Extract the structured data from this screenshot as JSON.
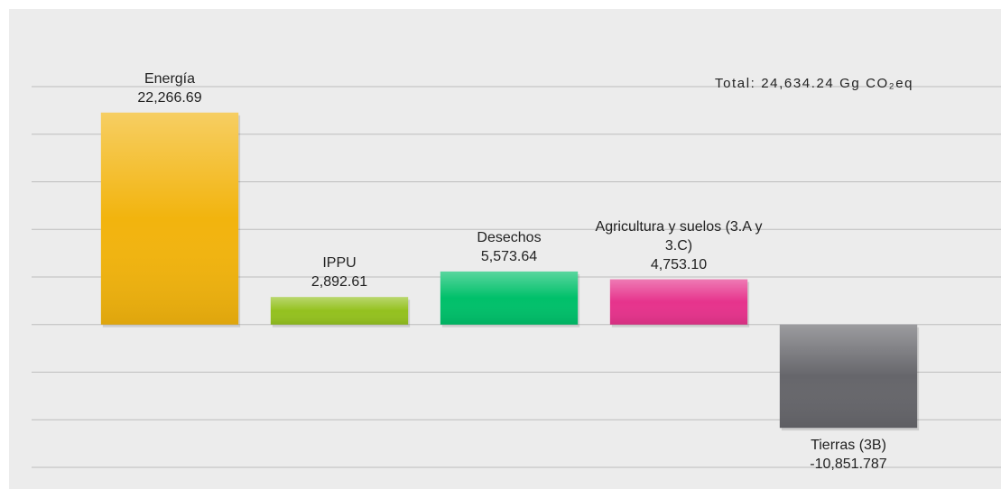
{
  "chart_data": {
    "type": "bar",
    "annotation": "Total: 24,634.24 Gg CO₂eq",
    "categories": [
      "Energía",
      "IPPU",
      "Desechos",
      "Agricultura y suelos (3.A y 3.C)",
      "Tierras (3B)"
    ],
    "values": [
      22266.69,
      2892.61,
      5573.64,
      4753.1,
      -10851.787
    ],
    "value_labels": [
      "22,266.69",
      "2,892.61",
      "5,573.64",
      "4,753.10",
      "-10,851.787"
    ],
    "colors": [
      "#f2b40e",
      "#94c11f",
      "#00c06a",
      "#e6338c",
      "#66666b"
    ],
    "ylim": [
      -15000,
      25000
    ],
    "yticks": [
      -15000,
      -10000,
      -5000,
      0,
      5000,
      10000,
      15000,
      20000,
      25000
    ],
    "grid": true
  }
}
